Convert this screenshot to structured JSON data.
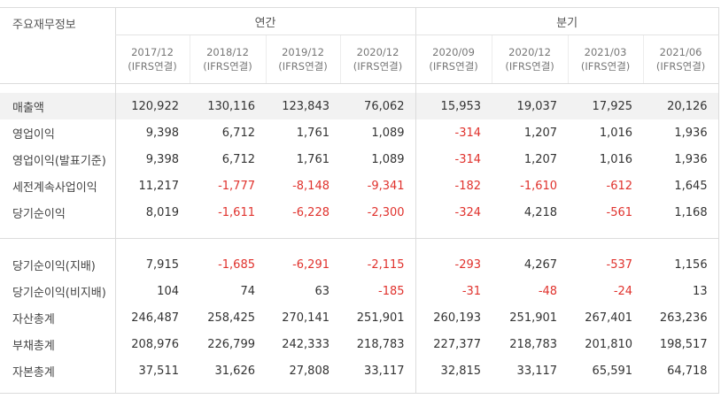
{
  "table": {
    "label_header": "주요재무정보",
    "groups": [
      {
        "label": "연간"
      },
      {
        "label": "분기"
      }
    ],
    "periods": [
      {
        "date": "2017/12",
        "basis": "(IFRS연결)"
      },
      {
        "date": "2018/12",
        "basis": "(IFRS연결)"
      },
      {
        "date": "2019/12",
        "basis": "(IFRS연결)"
      },
      {
        "date": "2020/12",
        "basis": "(IFRS연결)"
      },
      {
        "date": "2020/09",
        "basis": "(IFRS연결)"
      },
      {
        "date": "2020/12",
        "basis": "(IFRS연결)"
      },
      {
        "date": "2021/03",
        "basis": "(IFRS연결)"
      },
      {
        "date": "2021/06",
        "basis": "(IFRS연결)"
      }
    ],
    "section1": [
      {
        "label": "매출액",
        "values": [
          "120,922",
          "130,116",
          "123,843",
          "76,062",
          "15,953",
          "19,037",
          "17,925",
          "20,126"
        ]
      },
      {
        "label": "영업이익",
        "values": [
          "9,398",
          "6,712",
          "1,761",
          "1,089",
          "-314",
          "1,207",
          "1,016",
          "1,936"
        ]
      },
      {
        "label": "영업이익(발표기준)",
        "values": [
          "9,398",
          "6,712",
          "1,761",
          "1,089",
          "-314",
          "1,207",
          "1,016",
          "1,936"
        ]
      },
      {
        "label": "세전계속사업이익",
        "values": [
          "11,217",
          "-1,777",
          "-8,148",
          "-9,341",
          "-182",
          "-1,610",
          "-612",
          "1,645"
        ]
      },
      {
        "label": "당기순이익",
        "values": [
          "8,019",
          "-1,611",
          "-6,228",
          "-2,300",
          "-324",
          "4,218",
          "-561",
          "1,168"
        ]
      }
    ],
    "section2": [
      {
        "label": "당기순이익(지배)",
        "values": [
          "7,915",
          "-1,685",
          "-6,291",
          "-2,115",
          "-293",
          "4,267",
          "-537",
          "1,156"
        ]
      },
      {
        "label": "당기순이익(비지배)",
        "values": [
          "104",
          "74",
          "63",
          "-185",
          "-31",
          "-48",
          "-24",
          "13"
        ]
      },
      {
        "label": "자산총계",
        "values": [
          "246,487",
          "258,425",
          "270,141",
          "251,901",
          "260,193",
          "251,901",
          "267,401",
          "263,236"
        ]
      },
      {
        "label": "부채총계",
        "values": [
          "208,976",
          "226,799",
          "242,333",
          "218,783",
          "227,377",
          "218,783",
          "201,810",
          "198,517"
        ]
      },
      {
        "label": "자본총계",
        "values": [
          "37,511",
          "31,626",
          "27,808",
          "33,117",
          "32,815",
          "33,117",
          "65,591",
          "64,718"
        ]
      }
    ]
  },
  "colors": {
    "negative": "#e0322d",
    "highlight_row": "#f2f2f2",
    "border": "#dcdcdc"
  }
}
